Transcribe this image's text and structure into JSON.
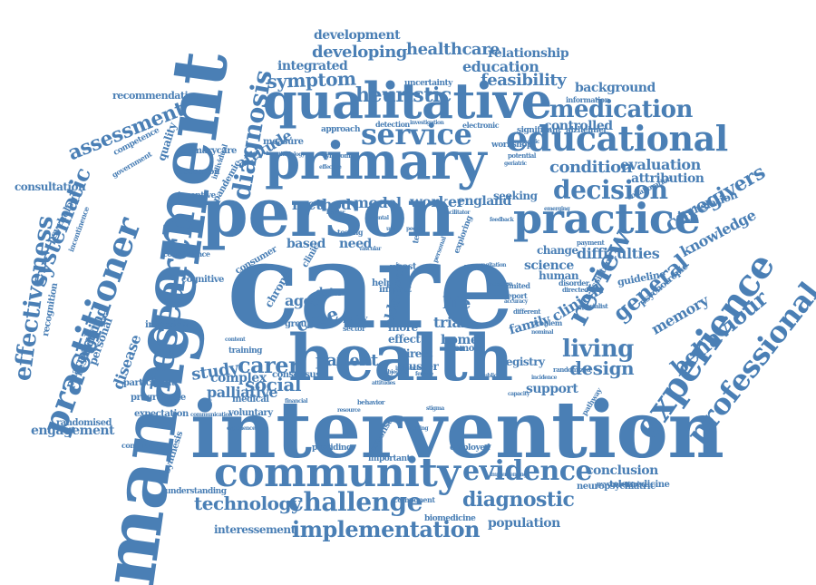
{
  "color": "#4a7fb5",
  "words": [
    {
      "text": "care"
    },
    {
      "text": "intervention"
    },
    {
      "text": "person"
    },
    {
      "text": "management"
    },
    {
      "text": "health"
    },
    {
      "text": "primary"
    },
    {
      "text": "qualitative"
    },
    {
      "text": "community"
    },
    {
      "text": "practice"
    },
    {
      "text": "educational"
    },
    {
      "text": "experience"
    },
    {
      "text": "research"
    },
    {
      "text": "practitioner"
    },
    {
      "text": "service"
    },
    {
      "text": "professional"
    },
    {
      "text": "evidence"
    },
    {
      "text": "implementation"
    },
    {
      "text": "challenge"
    },
    {
      "text": "decision"
    },
    {
      "text": "medication"
    },
    {
      "text": "diagnosis"
    },
    {
      "text": "effectiveness"
    },
    {
      "text": "review"
    },
    {
      "text": "general"
    },
    {
      "text": "diagnostic"
    },
    {
      "text": "behaviour"
    },
    {
      "text": "systematic"
    },
    {
      "text": "assessment"
    },
    {
      "text": "carer"
    },
    {
      "text": "living"
    },
    {
      "text": "condition"
    },
    {
      "text": "heuristic"
    },
    {
      "text": "symptom"
    },
    {
      "text": "caregivers"
    },
    {
      "text": "technology"
    },
    {
      "text": "social"
    },
    {
      "text": "design"
    },
    {
      "text": "patient"
    },
    {
      "text": "developing"
    },
    {
      "text": "healthcare"
    },
    {
      "text": "feasibility"
    },
    {
      "text": "education"
    },
    {
      "text": "evaluation"
    },
    {
      "text": "difficulties"
    },
    {
      "text": "knowledge"
    },
    {
      "text": "memory"
    },
    {
      "text": "clinical"
    },
    {
      "text": "study"
    },
    {
      "text": "population"
    },
    {
      "text": "conclusion"
    },
    {
      "text": "engagement"
    },
    {
      "text": "disease"
    },
    {
      "text": "making"
    },
    {
      "text": "palliative"
    },
    {
      "text": "method"
    },
    {
      "text": "model"
    },
    {
      "text": "worker"
    },
    {
      "text": "england"
    },
    {
      "text": "seeking"
    },
    {
      "text": "development"
    },
    {
      "text": "relationship"
    },
    {
      "text": "integrated"
    },
    {
      "text": "background"
    },
    {
      "text": "controlled"
    },
    {
      "text": "attribution"
    },
    {
      "text": "science"
    },
    {
      "text": "home"
    },
    {
      "text": "trial"
    },
    {
      "text": "life"
    },
    {
      "text": "case"
    },
    {
      "text": "support"
    },
    {
      "text": "family"
    },
    {
      "text": "complex"
    },
    {
      "text": "attitude"
    },
    {
      "text": "consultation"
    },
    {
      "text": "recommendation"
    },
    {
      "text": "personal"
    },
    {
      "text": "pharmacy"
    },
    {
      "text": "restriction"
    },
    {
      "text": "psychology"
    },
    {
      "text": "recognition"
    },
    {
      "text": "randomised"
    },
    {
      "text": "interessement"
    },
    {
      "text": "synthesis"
    },
    {
      "text": "programme"
    },
    {
      "text": "interview"
    },
    {
      "text": "participant"
    },
    {
      "text": "expectation"
    },
    {
      "text": "continuing"
    },
    {
      "text": "understanding"
    },
    {
      "text": "training"
    },
    {
      "text": "consensus"
    },
    {
      "text": "medical"
    },
    {
      "text": "voluntary"
    },
    {
      "text": "cognitive"
    },
    {
      "text": "consumer"
    },
    {
      "text": "aged"
    },
    {
      "text": "chronic"
    },
    {
      "text": "based"
    },
    {
      "text": "need"
    },
    {
      "text": "data"
    },
    {
      "text": "older"
    },
    {
      "text": "more"
    },
    {
      "text": "effect"
    },
    {
      "text": "direct"
    },
    {
      "text": "cluster"
    },
    {
      "text": "registry"
    },
    {
      "text": "remote"
    },
    {
      "text": "neuropsychiatric"
    },
    {
      "text": "telemedicine"
    },
    {
      "text": "biomedicine"
    },
    {
      "text": "component"
    },
    {
      "text": "employed"
    },
    {
      "text": "response"
    },
    {
      "text": "providing"
    },
    {
      "text": "important"
    },
    {
      "text": "change"
    },
    {
      "text": "human"
    },
    {
      "text": "guideline"
    },
    {
      "text": "assistant"
    },
    {
      "text": "psychotropic"
    },
    {
      "text": "translation"
    },
    {
      "text": "collaboration"
    },
    {
      "text": "alzheimer"
    },
    {
      "text": "information"
    },
    {
      "text": "significant"
    },
    {
      "text": "uncertainty"
    },
    {
      "text": "electronic"
    },
    {
      "text": "detection"
    },
    {
      "text": "investigation"
    },
    {
      "text": "approach"
    },
    {
      "text": "measure"
    },
    {
      "text": "discussion"
    },
    {
      "text": "primarycare"
    },
    {
      "text": "incentive"
    },
    {
      "text": "government"
    },
    {
      "text": "competence"
    },
    {
      "text": "quality"
    },
    {
      "text": "pandemic"
    },
    {
      "text": "individual"
    },
    {
      "text": "concordance"
    },
    {
      "text": "pathway"
    },
    {
      "text": "incontinence"
    },
    {
      "text": "help"
    },
    {
      "text": "impact"
    },
    {
      "text": "cost"
    },
    {
      "text": "testing"
    },
    {
      "text": "clinic"
    },
    {
      "text": "policy"
    },
    {
      "text": "sector"
    },
    {
      "text": "group"
    },
    {
      "text": "disorder"
    },
    {
      "text": "limited"
    },
    {
      "text": "report"
    },
    {
      "text": "inception"
    },
    {
      "text": "problem"
    },
    {
      "text": "nominal"
    },
    {
      "text": "directed"
    },
    {
      "text": "potential"
    },
    {
      "text": "geriatric"
    },
    {
      "text": "prognostic"
    },
    {
      "text": "workshop"
    },
    {
      "text": "psychological"
    },
    {
      "text": "implementing"
    },
    {
      "text": "behavior"
    },
    {
      "text": "financial"
    },
    {
      "text": "communication"
    },
    {
      "text": "payment"
    },
    {
      "text": "specialist"
    },
    {
      "text": "randomized"
    },
    {
      "text": "incidence"
    },
    {
      "text": "emerging"
    },
    {
      "text": "syndrome"
    },
    {
      "text": "methodology"
    },
    {
      "text": "rate"
    },
    {
      "text": "effective"
    },
    {
      "text": "influence"
    },
    {
      "text": "different"
    },
    {
      "text": "exploring"
    },
    {
      "text": "personal"
    },
    {
      "text": "month"
    },
    {
      "text": "agitation"
    },
    {
      "text": "term"
    },
    {
      "text": "staff"
    },
    {
      "text": "use"
    },
    {
      "text": "people"
    },
    {
      "text": "mental"
    },
    {
      "text": "vascular"
    },
    {
      "text": "female"
    },
    {
      "text": "public"
    },
    {
      "text": "content"
    },
    {
      "text": "experiences"
    },
    {
      "text": "attitudes"
    },
    {
      "text": "stigma"
    },
    {
      "text": "capacity"
    },
    {
      "text": "resource"
    },
    {
      "text": "setting"
    },
    {
      "text": "objective"
    },
    {
      "text": "barrier"
    },
    {
      "text": "facilitator"
    },
    {
      "text": "feedback"
    },
    {
      "text": "accuracy"
    }
  ]
}
